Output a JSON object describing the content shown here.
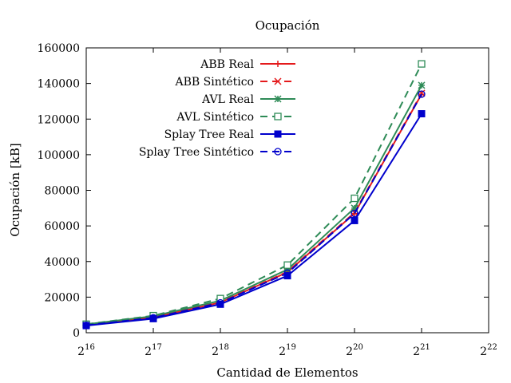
{
  "chart_data": {
    "type": "line",
    "title": "Ocupación",
    "xlabel": "Cantidad de Elementos",
    "ylabel": "Ocupación [kB]",
    "x_scale": "log2",
    "x": [
      65536,
      131072,
      262144,
      524288,
      1048576,
      2097152
    ],
    "xlim": [
      65536,
      4194304
    ],
    "x_ticks": [
      {
        "value": 65536,
        "base": "2",
        "exp": "16"
      },
      {
        "value": 131072,
        "base": "2",
        "exp": "17"
      },
      {
        "value": 262144,
        "base": "2",
        "exp": "18"
      },
      {
        "value": 524288,
        "base": "2",
        "exp": "19"
      },
      {
        "value": 1048576,
        "base": "2",
        "exp": "20"
      },
      {
        "value": 2097152,
        "base": "2",
        "exp": "21"
      },
      {
        "value": 4194304,
        "base": "2",
        "exp": "22"
      }
    ],
    "ylim": [
      0,
      160000
    ],
    "y_ticks": [
      0,
      20000,
      40000,
      60000,
      80000,
      100000,
      120000,
      140000,
      160000
    ],
    "y_tick_labels": [
      "0",
      "20000",
      "40000",
      "60000",
      "80000",
      "100000",
      "120000",
      "140000",
      "160000"
    ],
    "grid": false,
    "legend_position": "top-left",
    "series": [
      {
        "name": "ABB Real",
        "color": "#e41a1c",
        "dash": "solid",
        "marker": "plus",
        "values": [
          4300,
          8600,
          17000,
          34000,
          67000,
          134000
        ]
      },
      {
        "name": "ABB Sintético",
        "color": "#e41a1c",
        "dash": "dashed",
        "marker": "cross",
        "values": [
          4300,
          8700,
          17200,
          34300,
          67500,
          134500
        ]
      },
      {
        "name": "AVL Real",
        "color": "#2e8b57",
        "dash": "solid",
        "marker": "star",
        "values": [
          4700,
          9300,
          18000,
          35500,
          70000,
          139000
        ]
      },
      {
        "name": "AVL Sintético",
        "color": "#2e8b57",
        "dash": "dashed",
        "marker": "square-open",
        "values": [
          4800,
          9600,
          19200,
          38000,
          75500,
          151000
        ]
      },
      {
        "name": "Splay Tree Real",
        "color": "#0000cc",
        "dash": "solid",
        "marker": "square-filled",
        "values": [
          4000,
          7900,
          16000,
          32000,
          63000,
          123000
        ]
      },
      {
        "name": "Splay Tree Sintético",
        "color": "#0000cc",
        "dash": "dashed",
        "marker": "circle-open",
        "values": [
          4200,
          8400,
          16800,
          33500,
          67000,
          134000
        ]
      }
    ]
  }
}
